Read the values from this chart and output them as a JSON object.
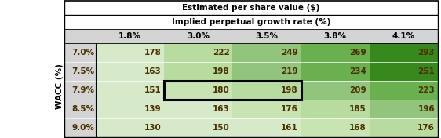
{
  "title1": "Estimated per share value ($)",
  "title2": "Implied perpetual growth rate (%)",
  "col_headers": [
    "1.8%",
    "3.0%",
    "3.5%",
    "3.8%",
    "4.1%"
  ],
  "row_headers": [
    "7.0%",
    "7.5%",
    "7.9%",
    "8.5%",
    "9.0%"
  ],
  "row_label": "WACC (%)",
  "values": [
    [
      178,
      222,
      249,
      269,
      293
    ],
    [
      163,
      198,
      219,
      234,
      251
    ],
    [
      151,
      180,
      198,
      209,
      223
    ],
    [
      139,
      163,
      176,
      185,
      196
    ],
    [
      130,
      150,
      161,
      168,
      176
    ]
  ],
  "cell_colors": [
    [
      "#d6e9c8",
      "#b8dba0",
      "#93c47d",
      "#6ab04e",
      "#38891d"
    ],
    [
      "#d6e9c8",
      "#b8dba0",
      "#93c47d",
      "#6ab04e",
      "#38891d"
    ],
    [
      "#d6e9c8",
      "#c8e4b2",
      "#b8dba0",
      "#93c47d",
      "#6ab04e"
    ],
    [
      "#d6e9c8",
      "#d6e9c8",
      "#c8e4b2",
      "#b8dba0",
      "#93c47d"
    ],
    [
      "#d6e9c8",
      "#d6e9c8",
      "#d6e9c8",
      "#c8e4b2",
      "#b8dba0"
    ]
  ],
  "header_bg": "#d4d4d4",
  "row_header_bg": "#d4d4d4",
  "outer_bg": "#ffffff",
  "title_fontsize": 7.5,
  "cell_fontsize": 7.5,
  "header_fontsize": 7.5,
  "wacc_label_fontsize": 7.5,
  "text_color": "#4a3000"
}
